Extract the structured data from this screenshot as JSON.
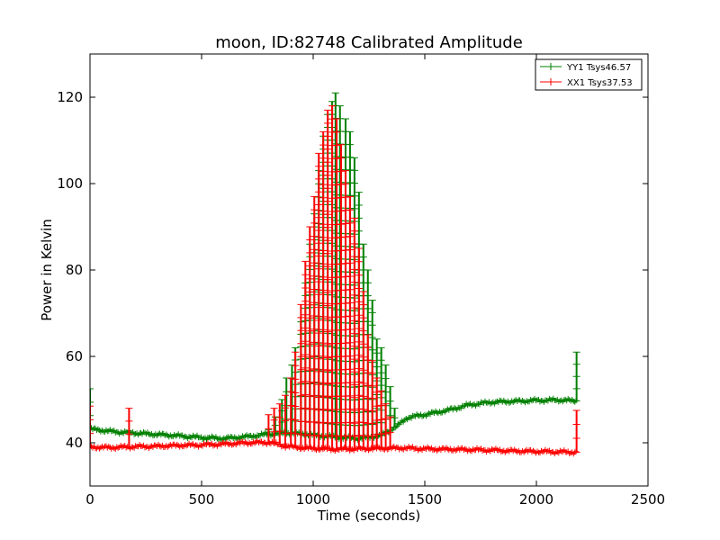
{
  "chart_data": {
    "type": "line",
    "title": "moon, ID:82748 Calibrated Amplitude",
    "xlabel": "Time (seconds)",
    "ylabel": "Power in Kelvin",
    "xlim": [
      0,
      2500
    ],
    "ylim": [
      30,
      130
    ],
    "xticks": [
      0,
      500,
      1000,
      1500,
      2000,
      2500
    ],
    "yticks": [
      40,
      60,
      80,
      100,
      120
    ],
    "grid": false,
    "legend_position": "top-right",
    "series": [
      {
        "name": "YY1 Tsys46.57",
        "color": "#008000",
        "baseline": [
          [
            0,
            43.2
          ],
          [
            100,
            42.6
          ],
          [
            250,
            42.1
          ],
          [
            400,
            41.6
          ],
          [
            500,
            41.2
          ],
          [
            600,
            41.0
          ],
          [
            700,
            41.4
          ],
          [
            800,
            42.0
          ],
          [
            900,
            42.3
          ],
          [
            1000,
            41.8
          ],
          [
            1100,
            41.3
          ],
          [
            1200,
            41.0
          ],
          [
            1300,
            41.6
          ],
          [
            1380,
            44.0
          ],
          [
            1420,
            45.8
          ],
          [
            1500,
            46.5
          ],
          [
            1600,
            47.5
          ],
          [
            1700,
            48.8
          ],
          [
            1800,
            49.4
          ],
          [
            1900,
            49.6
          ],
          [
            2000,
            49.8
          ],
          [
            2100,
            49.9
          ],
          [
            2180,
            49.7
          ]
        ],
        "spikes": [
          [
            0,
            52.5
          ],
          [
            800,
            43
          ],
          [
            830,
            46
          ],
          [
            860,
            50
          ],
          [
            880,
            55
          ],
          [
            905,
            58
          ],
          [
            920,
            62
          ],
          [
            945,
            68
          ],
          [
            965,
            77
          ],
          [
            985,
            86
          ],
          [
            1005,
            93
          ],
          [
            1025,
            103
          ],
          [
            1045,
            111
          ],
          [
            1065,
            116
          ],
          [
            1085,
            119
          ],
          [
            1100,
            121
          ],
          [
            1120,
            118
          ],
          [
            1145,
            115
          ],
          [
            1165,
            112
          ],
          [
            1185,
            106
          ],
          [
            1205,
            98
          ],
          [
            1225,
            86
          ],
          [
            1245,
            80
          ],
          [
            1265,
            73
          ],
          [
            1285,
            64
          ],
          [
            1305,
            62
          ],
          [
            1325,
            58
          ],
          [
            1345,
            53
          ],
          [
            1365,
            48
          ],
          [
            2180,
            61
          ]
        ]
      },
      {
        "name": "XX1 Tsys37.53",
        "color": "#ff0000",
        "baseline": [
          [
            0,
            39.0
          ],
          [
            100,
            38.9
          ],
          [
            200,
            39.1
          ],
          [
            300,
            39.2
          ],
          [
            400,
            39.4
          ],
          [
            500,
            39.5
          ],
          [
            600,
            39.7
          ],
          [
            700,
            40.0
          ],
          [
            800,
            40.1
          ],
          [
            880,
            39.2
          ],
          [
            960,
            38.8
          ],
          [
            1040,
            38.6
          ],
          [
            1120,
            38.5
          ],
          [
            1200,
            38.6
          ],
          [
            1300,
            38.7
          ],
          [
            1400,
            38.8
          ],
          [
            1500,
            38.6
          ],
          [
            1600,
            38.5
          ],
          [
            1700,
            38.4
          ],
          [
            1800,
            38.3
          ],
          [
            1900,
            38.1
          ],
          [
            2000,
            38.0
          ],
          [
            2100,
            37.9
          ],
          [
            2180,
            37.8
          ]
        ],
        "spikes": [
          [
            0,
            48.5
          ],
          [
            175,
            48
          ],
          [
            800,
            46.5
          ],
          [
            825,
            48
          ],
          [
            850,
            49
          ],
          [
            875,
            51
          ],
          [
            900,
            55
          ],
          [
            920,
            61
          ],
          [
            945,
            72
          ],
          [
            965,
            82
          ],
          [
            985,
            90
          ],
          [
            1005,
            97
          ],
          [
            1025,
            107
          ],
          [
            1045,
            112
          ],
          [
            1065,
            117
          ],
          [
            1085,
            118
          ],
          [
            1105,
            115
          ],
          [
            1125,
            109
          ],
          [
            1145,
            103
          ],
          [
            1165,
            97
          ],
          [
            1185,
            92
          ],
          [
            1205,
            85
          ],
          [
            1225,
            75
          ],
          [
            1245,
            65
          ],
          [
            1265,
            59
          ],
          [
            1285,
            55
          ],
          [
            1305,
            52
          ],
          [
            1325,
            49
          ],
          [
            1345,
            46
          ],
          [
            2180,
            47.5
          ]
        ]
      }
    ]
  }
}
